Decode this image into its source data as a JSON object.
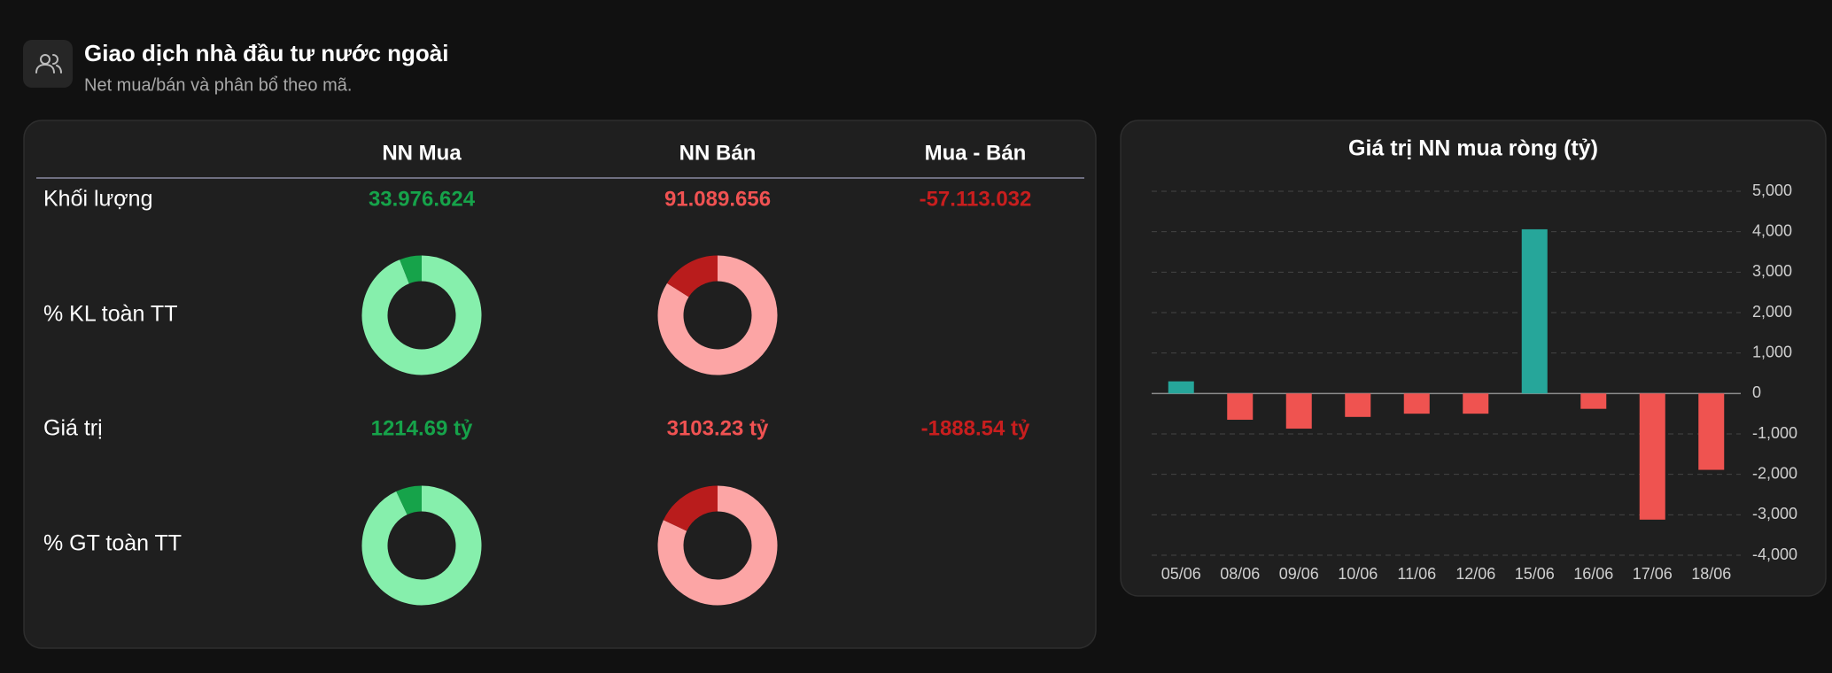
{
  "header": {
    "title": "Giao dịch nhà đầu tư nước ngoài",
    "subtitle": "Net mua/bán và phân bổ theo mã."
  },
  "table": {
    "columns": [
      "NN Mua",
      "NN Bán",
      "Mua - Bán"
    ],
    "rows": [
      {
        "label": "Khối lượng",
        "cells": [
          "33.976.624",
          "91.089.656",
          "-57.113.032"
        ]
      },
      {
        "label": "% KL toàn TT"
      },
      {
        "label": "Giá trị",
        "cells": [
          "1214.69 tỷ",
          "3103.23 tỷ",
          "-1888.54 tỷ"
        ]
      },
      {
        "label": "% GT toàn TT"
      }
    ]
  },
  "chart_data": [
    {
      "type": "bar",
      "title": "Giá trị NN mua ròng (tỷ)",
      "categories": [
        "05/06",
        "08/06",
        "09/06",
        "10/06",
        "11/06",
        "12/06",
        "15/06",
        "16/06",
        "17/06",
        "18/06"
      ],
      "values": [
        300,
        -650,
        -870,
        -580,
        -500,
        -500,
        4060,
        -380,
        -3120,
        -1888.54
      ],
      "positive_color": "#26a69a",
      "negative_color": "#ef5350",
      "ylim": [
        -4000,
        5000
      ],
      "yticks": [
        {
          "value": 5000,
          "label": "5,000"
        },
        {
          "value": 4000,
          "label": "4,000"
        },
        {
          "value": 3000,
          "label": "3,000"
        },
        {
          "value": 2000,
          "label": "2,000"
        },
        {
          "value": 1000,
          "label": "1,000"
        },
        0,
        {
          "value": -1000,
          "label": "-1,000"
        },
        {
          "value": -2000,
          "label": "-2,000"
        },
        {
          "value": -3000,
          "label": "-3,000"
        },
        {
          "value": -4000,
          "label": "-4,000"
        }
      ],
      "grid": true
    },
    {
      "type": "pie",
      "values": [
        94,
        6
      ],
      "colors": [
        "#86efac",
        "#16a34a"
      ]
    },
    {
      "type": "pie",
      "values": [
        84,
        16
      ],
      "colors": [
        "#fca5a5",
        "#b91c1c"
      ]
    },
    {
      "type": "pie",
      "values": [
        93,
        7
      ],
      "colors": [
        "#86efac",
        "#16a34a"
      ]
    },
    {
      "type": "pie",
      "values": [
        82,
        18
      ],
      "colors": [
        "#fca5a5",
        "#b91c1c"
      ]
    }
  ]
}
